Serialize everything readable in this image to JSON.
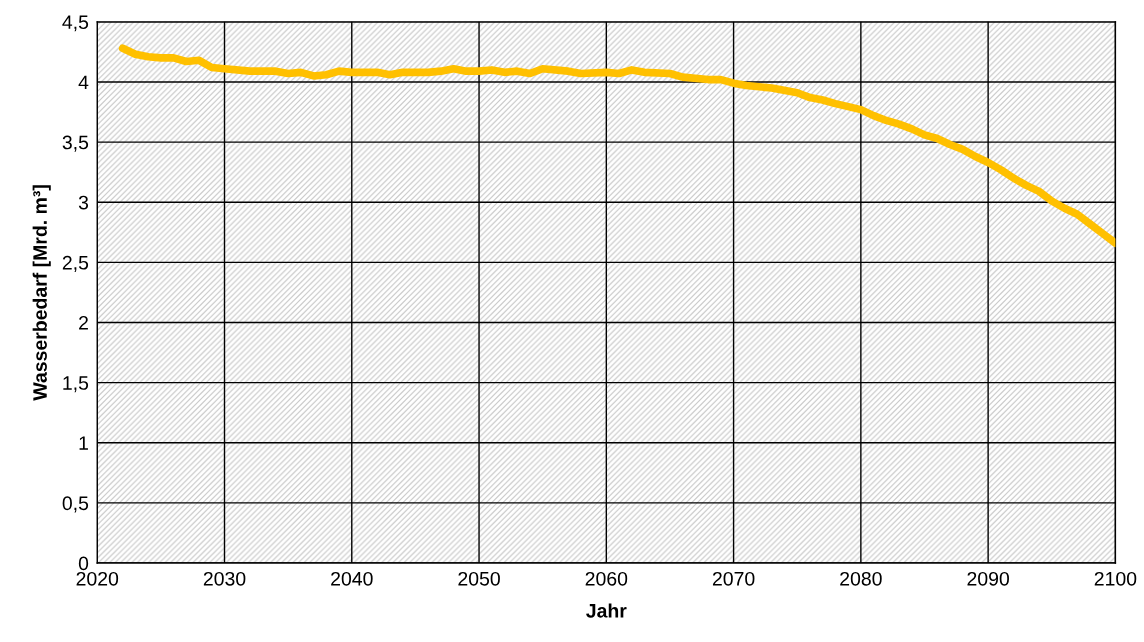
{
  "chart_data": {
    "type": "line",
    "xlabel": "Jahr",
    "ylabel": "Wasserbedarf [Mrd. m³]",
    "x": [
      2022,
      2023,
      2024,
      2025,
      2026,
      2027,
      2028,
      2029,
      2030,
      2032,
      2034,
      2035,
      2036,
      2037,
      2038,
      2039,
      2040,
      2042,
      2043,
      2044,
      2046,
      2047,
      2048,
      2049,
      2050,
      2051,
      2052,
      2053,
      2054,
      2055,
      2057,
      2058,
      2060,
      2061,
      2062,
      2063,
      2065,
      2066,
      2068,
      2069,
      2070,
      2071,
      2073,
      2075,
      2076,
      2077,
      2078,
      2080,
      2081,
      2082,
      2083,
      2084,
      2085,
      2086,
      2087,
      2088,
      2089,
      2090,
      2091,
      2092,
      2093,
      2094,
      2095,
      2096,
      2097,
      2098,
      2099,
      2100
    ],
    "series": [
      {
        "color": "#ffc000",
        "values": [
          4.28,
          4.23,
          4.21,
          4.2,
          4.2,
          4.17,
          4.18,
          4.12,
          4.11,
          4.09,
          4.09,
          4.07,
          4.08,
          4.05,
          4.06,
          4.09,
          4.08,
          4.08,
          4.06,
          4.08,
          4.08,
          4.09,
          4.11,
          4.09,
          4.09,
          4.1,
          4.08,
          4.09,
          4.07,
          4.11,
          4.09,
          4.07,
          4.08,
          4.07,
          4.1,
          4.08,
          4.07,
          4.04,
          4.02,
          4.02,
          3.99,
          3.97,
          3.95,
          3.91,
          3.87,
          3.85,
          3.82,
          3.77,
          3.72,
          3.68,
          3.65,
          3.61,
          3.56,
          3.53,
          3.48,
          3.44,
          3.38,
          3.33,
          3.27,
          3.2,
          3.14,
          3.09,
          3.01,
          2.95,
          2.9,
          2.82,
          2.74,
          2.66
        ]
      }
    ],
    "xlim": [
      2020,
      2100
    ],
    "xticks": [
      2020,
      2030,
      2040,
      2050,
      2060,
      2070,
      2080,
      2090,
      2100
    ],
    "ylim": [
      0,
      4.5
    ],
    "yticks": [
      0,
      {
        "value": 0.5,
        "label": "0,5"
      },
      1,
      {
        "value": 1.5,
        "label": "1,5"
      },
      2,
      {
        "value": 2.5,
        "label": "2,5"
      },
      3,
      {
        "value": 3.5,
        "label": "3,5"
      },
      4,
      {
        "value": 4.5,
        "label": "4,5"
      }
    ],
    "grid": true,
    "marker": "none",
    "line_style": "solid"
  }
}
